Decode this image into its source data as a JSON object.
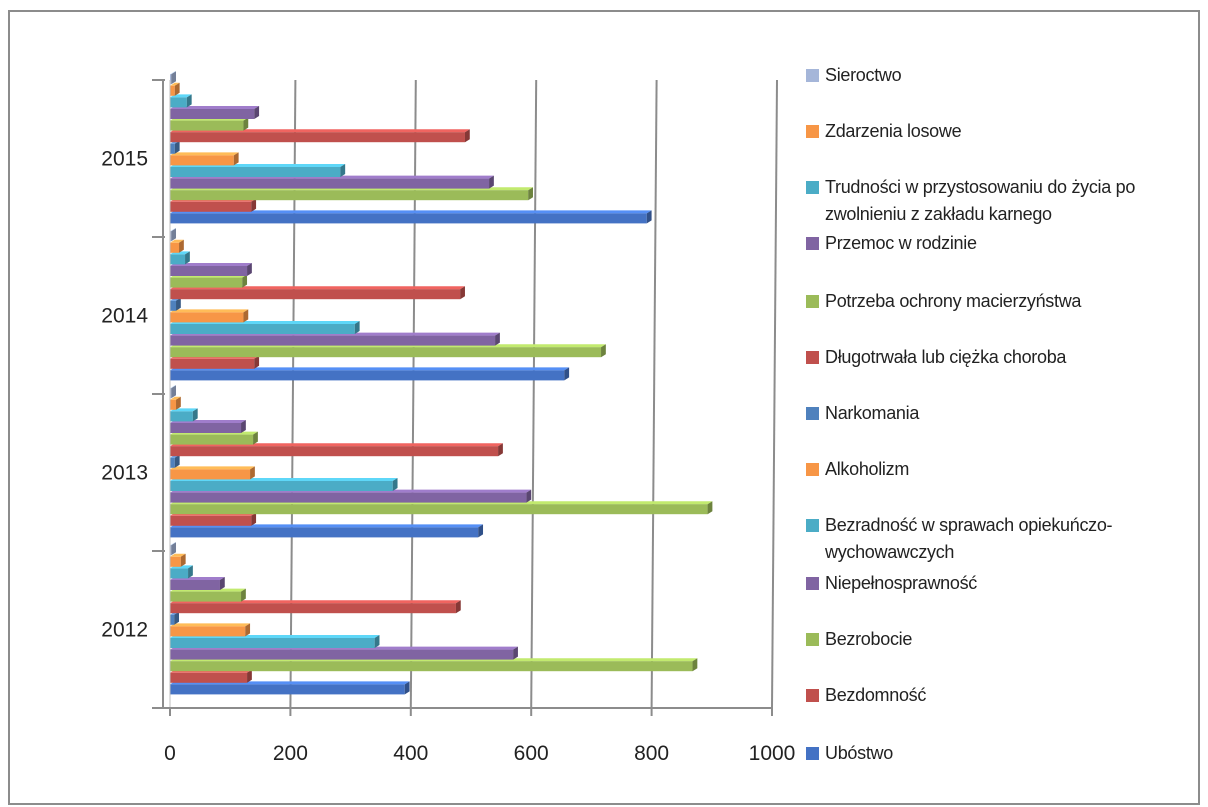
{
  "chart_data": {
    "type": "bar",
    "orientation": "horizontal",
    "categories": [
      "2012",
      "2013",
      "2014",
      "2015"
    ],
    "xlim": [
      0,
      1000
    ],
    "x_ticks": [
      "0",
      "200",
      "400",
      "600",
      "800",
      "1000"
    ],
    "grid": true,
    "legend_position": "right",
    "series": [
      {
        "name": "Ubóstwo",
        "color": "#4472c4",
        "values": [
          390,
          512,
          655,
          792
        ]
      },
      {
        "name": "Bezdomność",
        "color": "#c0504d",
        "values": [
          128,
          135,
          140,
          135
        ]
      },
      {
        "name": "Bezrobocie",
        "color": "#9bbb59",
        "values": [
          868,
          893,
          716,
          595
        ]
      },
      {
        "name": "Niepełnosprawność",
        "color": "#8064a2",
        "values": [
          570,
          592,
          540,
          530
        ]
      },
      {
        "name": "Bezradność w sprawach opiekuńczo-wychowawczych",
        "color": "#4bacc6",
        "values": [
          340,
          370,
          307,
          283
        ]
      },
      {
        "name": "Alkoholizm",
        "color": "#f79646",
        "values": [
          125,
          133,
          122,
          106
        ]
      },
      {
        "name": "Narkomania",
        "color": "#4f81bd",
        "values": [
          7,
          8,
          10,
          8
        ]
      },
      {
        "name": "Długotrwała lub ciężka choroba",
        "color": "#c0504d",
        "values": [
          475,
          545,
          482,
          490
        ]
      },
      {
        "name": "Potrzeba ochrony macierzyństwa",
        "color": "#9bbb59",
        "values": [
          118,
          138,
          120,
          122
        ]
      },
      {
        "name": "Przemoc w rodzinie",
        "color": "#8064a2",
        "values": [
          83,
          118,
          128,
          140
        ]
      },
      {
        "name": "Trudności w przystosowaniu do życia po zwolnieniu z zakładu karnego",
        "color": "#4bacc6",
        "values": [
          30,
          38,
          25,
          28
        ]
      },
      {
        "name": "Zdarzenia losowe",
        "color": "#f79646",
        "values": [
          18,
          10,
          15,
          8
        ]
      },
      {
        "name": "Sieroctwo",
        "color": "#a5b6d9",
        "values": [
          2,
          2,
          2,
          2
        ]
      }
    ]
  }
}
